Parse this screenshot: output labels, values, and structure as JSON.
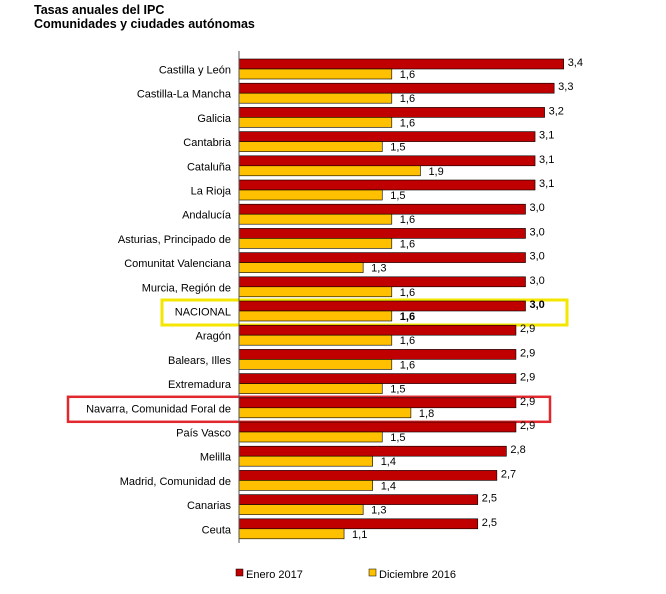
{
  "title_line1": "Tasas anuales del IPC",
  "title_line2": "Comunidades y ciudades autónomas",
  "colors": {
    "enero": "#C00000",
    "diciembre": "#FFC000",
    "nacional_box": "#F5E600",
    "navarra_box": "#E0282E"
  },
  "chart_data": {
    "type": "bar",
    "orientation": "horizontal",
    "categories": [
      "Castilla y León",
      "Castilla-La Mancha",
      "Galicia",
      "Cantabria",
      "Cataluña",
      "La Rioja",
      "Andalucía",
      "Asturias, Principado de",
      "Comunitat Valenciana",
      "Murcia, Región de",
      "NACIONAL",
      "Aragón",
      "Balears, Illes",
      "Extremadura",
      "Navarra, Comunidad Foral de",
      "País Vasco",
      "Melilla",
      "Madrid, Comunidad de",
      "Canarias",
      "Ceuta"
    ],
    "series": [
      {
        "name": "Enero 2017",
        "values": [
          3.4,
          3.3,
          3.2,
          3.1,
          3.1,
          3.1,
          3.0,
          3.0,
          3.0,
          3.0,
          3.0,
          2.9,
          2.9,
          2.9,
          2.9,
          2.9,
          2.8,
          2.7,
          2.5,
          2.5
        ],
        "labels": [
          "3,4",
          "3,3",
          "3,2",
          "3,1",
          "3,1",
          "3,1",
          "3,0",
          "3,0",
          "3,0",
          "3,0",
          "3,0",
          "2,9",
          "2,9",
          "2,9",
          "2,9",
          "2,9",
          "2,8",
          "2,7",
          "2,5",
          "2,5"
        ]
      },
      {
        "name": "Diciembre 2016",
        "values": [
          1.6,
          1.6,
          1.6,
          1.5,
          1.9,
          1.5,
          1.6,
          1.6,
          1.3,
          1.6,
          1.6,
          1.6,
          1.6,
          1.5,
          1.8,
          1.5,
          1.4,
          1.4,
          1.3,
          1.1
        ],
        "labels": [
          "1,6",
          "1,6",
          "1,6",
          "1,5",
          "1,9",
          "1,5",
          "1,6",
          "1,6",
          "1,3",
          "1,6",
          "1,6",
          "1,6",
          "1,6",
          "1,5",
          "1,8",
          "1,5",
          "1,4",
          "1,4",
          "1,3",
          "1,1"
        ]
      }
    ],
    "highlight": {
      "NACIONAL": "yellow box",
      "Navarra, Comunidad Foral de": "red box"
    },
    "legend_position": "bottom",
    "grid": false
  }
}
